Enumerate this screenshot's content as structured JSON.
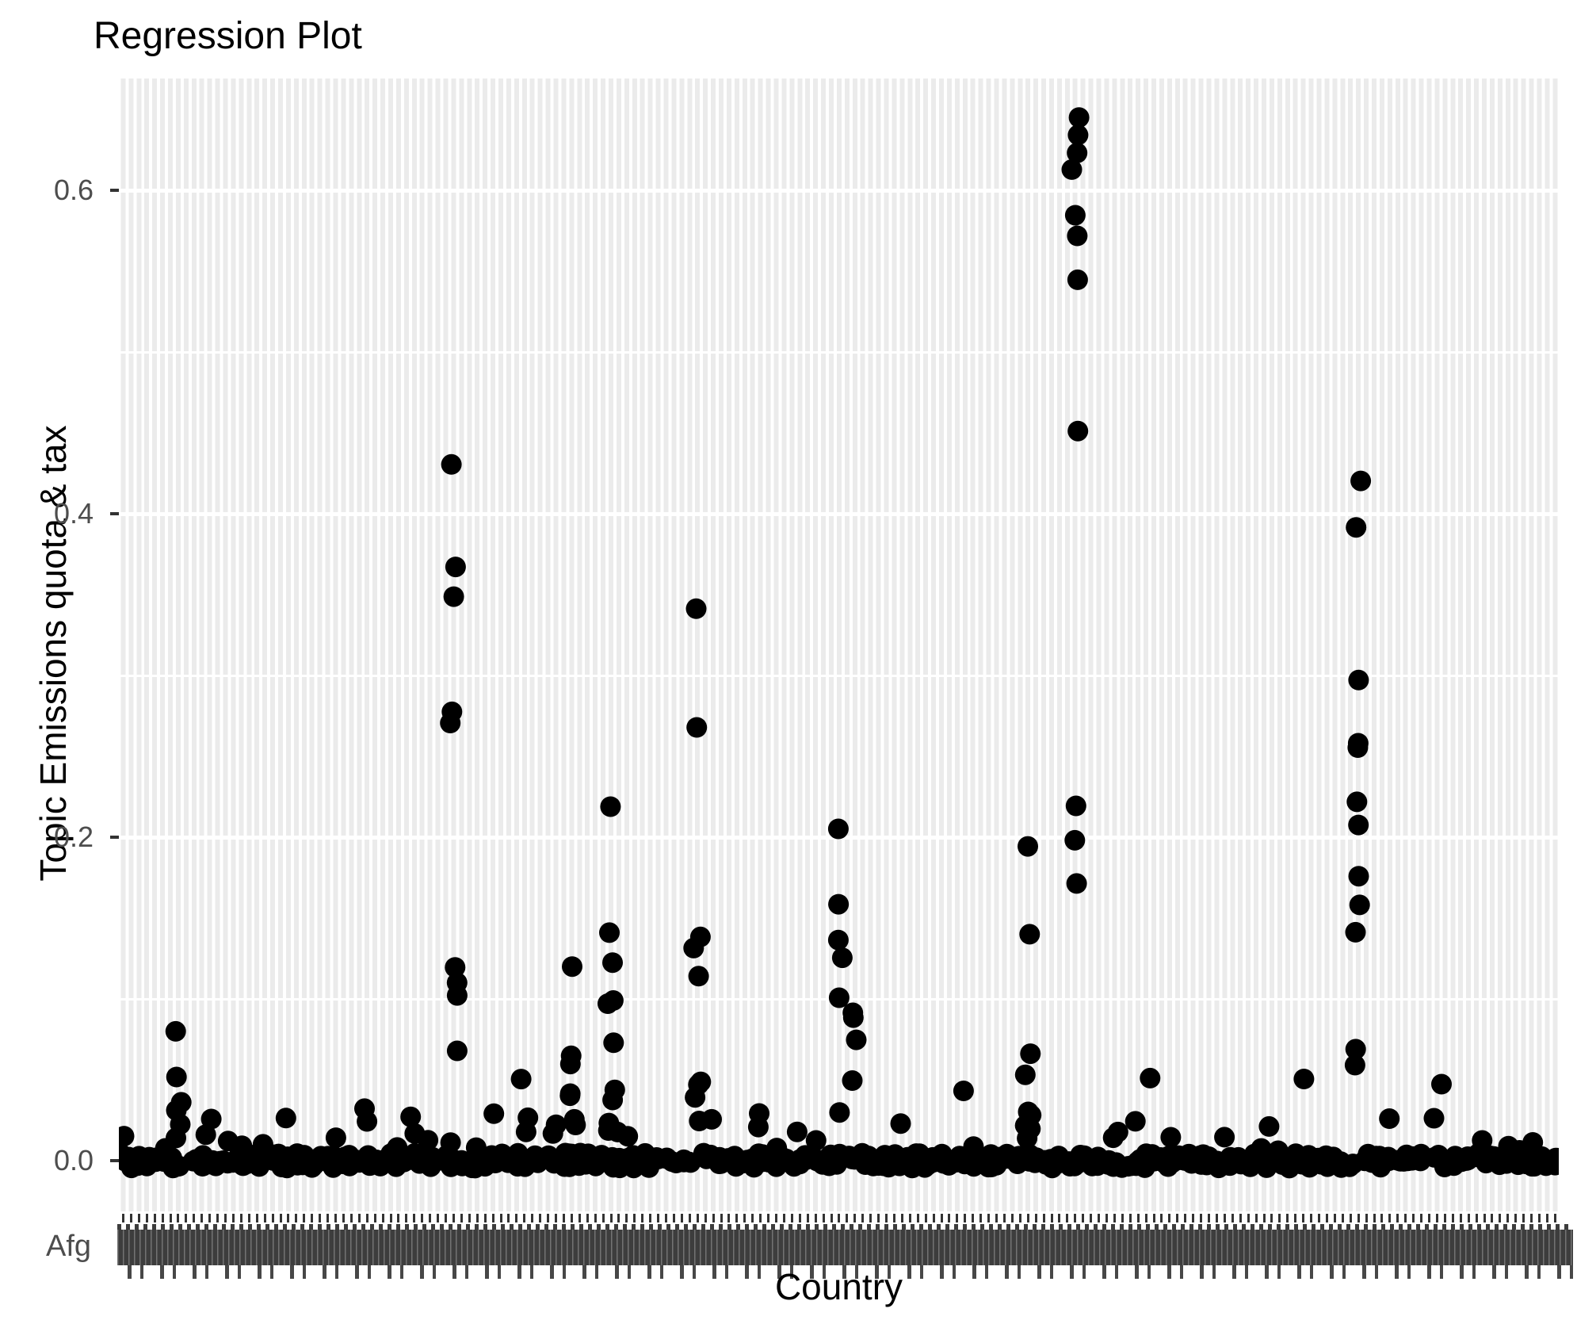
{
  "title": "Regression Plot",
  "y_axis": {
    "title": "Topic Emissions quota & tax",
    "ticks": [
      {
        "label": "0.6",
        "value": 0.6
      },
      {
        "label": "0.4",
        "value": 0.4
      },
      {
        "label": "0.2",
        "value": 0.2
      },
      {
        "label": "0.0",
        "value": 0.0
      }
    ]
  },
  "x_axis": {
    "title": "Country",
    "first_label_fragment": "Afg",
    "labels_overlapping_illegible": true,
    "n_categories": 183
  },
  "colors": {
    "background": "#ffffff",
    "point": "#000000",
    "grid_stripe": "#ebebeb",
    "gridline": "#ffffff",
    "axis_text": "#4d4d4d",
    "tick_mark": "#333333",
    "title_text": "#000000",
    "label_smear": "#3d3d3d"
  },
  "chart_data": {
    "type": "scatter",
    "title": "Regression Plot",
    "xlabel": "Country",
    "ylabel": "Topic Emissions quota & tax",
    "x_categorical": true,
    "n_categories": 183,
    "x_tick_labels_legible": false,
    "first_x_label_fragment": "Afg",
    "ylim": [
      -0.03,
      0.67
    ],
    "y_major_ticks": [
      0.0,
      0.2,
      0.4,
      0.6
    ],
    "y_minor_gridlines": [
      0.1,
      0.3,
      0.5
    ],
    "grid": {
      "vertical_stripe_per_category": true,
      "horizontal_gridlines": "white"
    },
    "legend": null,
    "points": [
      {
        "x_index": 0,
        "values": [
          0.015
        ]
      },
      {
        "x_index": 5,
        "values": [
          0.008
        ]
      },
      {
        "x_index": 7,
        "values": [
          0.08,
          0.052,
          0.036,
          0.032,
          0.022,
          0.014
        ]
      },
      {
        "x_index": 11,
        "values": [
          0.026,
          0.016
        ]
      },
      {
        "x_index": 13,
        "values": [
          0.011
        ]
      },
      {
        "x_index": 15,
        "values": [
          0.008
        ]
      },
      {
        "x_index": 18,
        "values": [
          0.009
        ]
      },
      {
        "x_index": 21,
        "values": [
          0.027
        ]
      },
      {
        "x_index": 27,
        "values": [
          0.013
        ]
      },
      {
        "x_index": 31,
        "values": [
          0.033,
          0.025
        ]
      },
      {
        "x_index": 35,
        "values": [
          0.008
        ]
      },
      {
        "x_index": 37,
        "values": [
          0.026,
          0.017
        ]
      },
      {
        "x_index": 39,
        "values": [
          0.013
        ]
      },
      {
        "x_index": 42,
        "values": [
          0.43,
          0.368,
          0.348,
          0.277,
          0.271,
          0.12,
          0.109,
          0.102,
          0.067,
          0.01
        ]
      },
      {
        "x_index": 45,
        "values": [
          0.008
        ]
      },
      {
        "x_index": 47,
        "values": [
          0.03
        ]
      },
      {
        "x_index": 51,
        "values": [
          0.051,
          0.026,
          0.017
        ]
      },
      {
        "x_index": 55,
        "values": [
          0.023,
          0.018
        ]
      },
      {
        "x_index": 57,
        "values": [
          0.121,
          0.065,
          0.06,
          0.042,
          0.04,
          0.026,
          0.023
        ]
      },
      {
        "x_index": 62,
        "values": [
          0.219,
          0.14,
          0.122,
          0.1,
          0.097,
          0.072,
          0.043,
          0.038,
          0.023,
          0.019
        ]
      },
      {
        "x_index": 63,
        "values": [
          0.017
        ]
      },
      {
        "x_index": 64,
        "values": [
          0.016
        ]
      },
      {
        "x_index": 73,
        "values": [
          0.342,
          0.267,
          0.138,
          0.132,
          0.115,
          0.048,
          0.047,
          0.038,
          0.025
        ]
      },
      {
        "x_index": 75,
        "values": [
          0.025
        ]
      },
      {
        "x_index": 81,
        "values": [
          0.028,
          0.022
        ]
      },
      {
        "x_index": 83,
        "values": [
          0.009
        ]
      },
      {
        "x_index": 86,
        "values": [
          0.017
        ]
      },
      {
        "x_index": 88,
        "values": [
          0.012
        ]
      },
      {
        "x_index": 91,
        "values": [
          0.205,
          0.159,
          0.136,
          0.125,
          0.101,
          0.03
        ]
      },
      {
        "x_index": 93,
        "values": [
          0.091,
          0.088,
          0.074,
          0.05
        ]
      },
      {
        "x_index": 99,
        "values": [
          0.022
        ]
      },
      {
        "x_index": 107,
        "values": [
          0.042
        ]
      },
      {
        "x_index": 108,
        "values": [
          0.008
        ]
      },
      {
        "x_index": 115,
        "values": [
          0.194,
          0.141,
          0.066,
          0.054,
          0.031,
          0.028,
          0.022,
          0.019,
          0.014
        ]
      },
      {
        "x_index": 121,
        "values": [
          0.645,
          0.635,
          0.622,
          0.612,
          0.585,
          0.573,
          0.545,
          0.452,
          0.219,
          0.199,
          0.171
        ]
      },
      {
        "x_index": 126,
        "values": [
          0.018,
          0.015
        ]
      },
      {
        "x_index": 129,
        "values": [
          0.024
        ]
      },
      {
        "x_index": 131,
        "values": [
          0.05
        ]
      },
      {
        "x_index": 133,
        "values": [
          0.015
        ]
      },
      {
        "x_index": 135,
        "values": [
          0.005
        ]
      },
      {
        "x_index": 140,
        "values": [
          0.015
        ]
      },
      {
        "x_index": 145,
        "values": [
          0.007
        ]
      },
      {
        "x_index": 146,
        "values": [
          0.02
        ]
      },
      {
        "x_index": 147,
        "values": [
          0.006
        ]
      },
      {
        "x_index": 150,
        "values": [
          0.051
        ]
      },
      {
        "x_index": 157,
        "values": [
          0.421,
          0.392,
          0.297,
          0.258,
          0.255,
          0.221,
          0.207,
          0.176,
          0.158,
          0.14,
          0.07,
          0.06
        ]
      },
      {
        "x_index": 161,
        "values": [
          0.026
        ]
      },
      {
        "x_index": 167,
        "values": [
          0.027
        ]
      },
      {
        "x_index": 168,
        "values": [
          0.047
        ]
      },
      {
        "x_index": 173,
        "values": [
          0.013
        ]
      },
      {
        "x_index": 176,
        "values": [
          0.008
        ]
      },
      {
        "x_index": 177,
        "values": [
          0.007
        ]
      },
      {
        "x_index": 179,
        "values": [
          0.012
        ]
      }
    ],
    "baseline_points": {
      "value": 0.0,
      "every_category": true,
      "from_index": 0,
      "to_index": 182,
      "gap_indices": [
        8,
        73,
        140,
        157,
        166
      ]
    }
  }
}
